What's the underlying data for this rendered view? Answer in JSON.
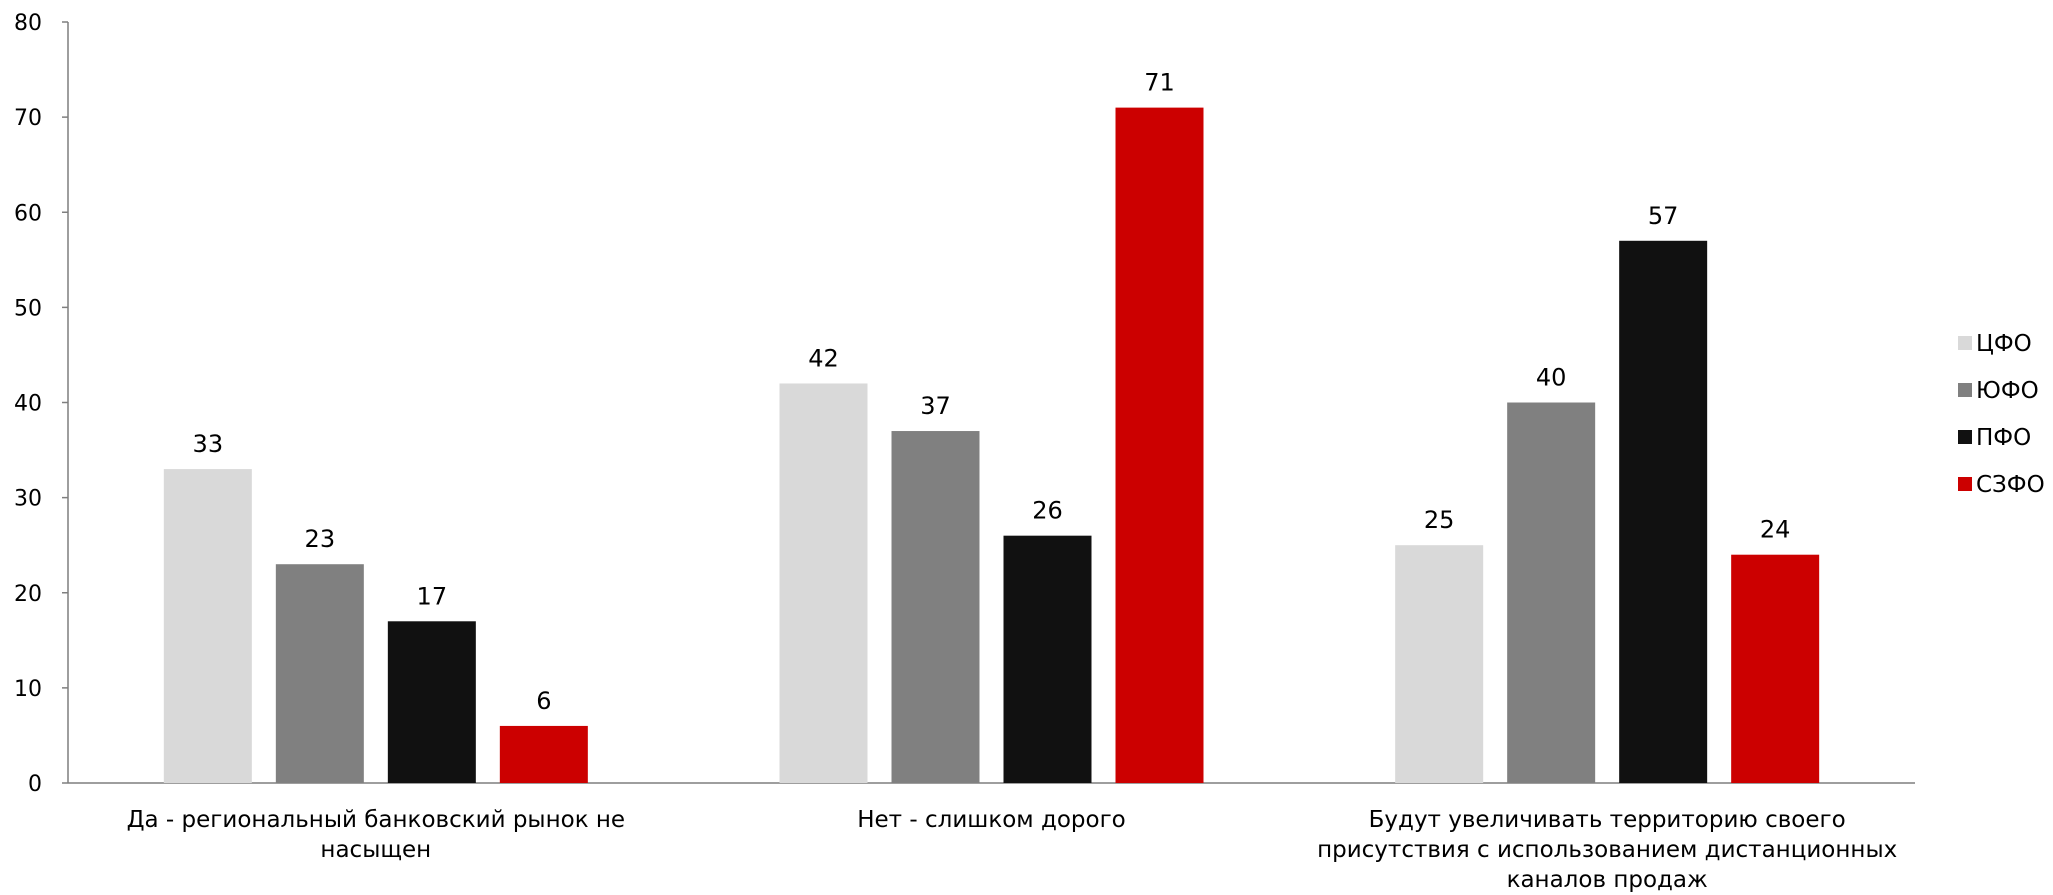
{
  "chart_data": {
    "type": "bar",
    "title": "",
    "categories": [
      "Да - региональный банковский рынок не насыщен",
      "Нет - слишком дорого",
      "Будут увеличивать территорию своего присутствия с использованием дистанционных каналов продаж"
    ],
    "category_lines": [
      [
        "Да - региональный банковский рынок не",
        "насыщен"
      ],
      [
        "Нет - слишком дорого"
      ],
      [
        "Будут увеличивать территорию своего",
        "присутствия с использованием дистанционных",
        "каналов продаж"
      ]
    ],
    "series": [
      {
        "name": "ЦФО",
        "color": "#d9d9d9",
        "values": [
          33,
          42,
          25
        ]
      },
      {
        "name": "ЮФО",
        "color": "#808080",
        "values": [
          23,
          37,
          40
        ]
      },
      {
        "name": "ПФО",
        "color": "#111111",
        "values": [
          17,
          26,
          57
        ]
      },
      {
        "name": "СЗФО",
        "color": "#cc0000",
        "values": [
          6,
          71,
          24
        ]
      }
    ],
    "ylim": [
      0,
      80
    ],
    "yticks": [
      0,
      10,
      20,
      30,
      40,
      50,
      60,
      70,
      80
    ],
    "grid": false,
    "legend": "right",
    "data_labels": true,
    "xlabel": "",
    "ylabel": ""
  }
}
